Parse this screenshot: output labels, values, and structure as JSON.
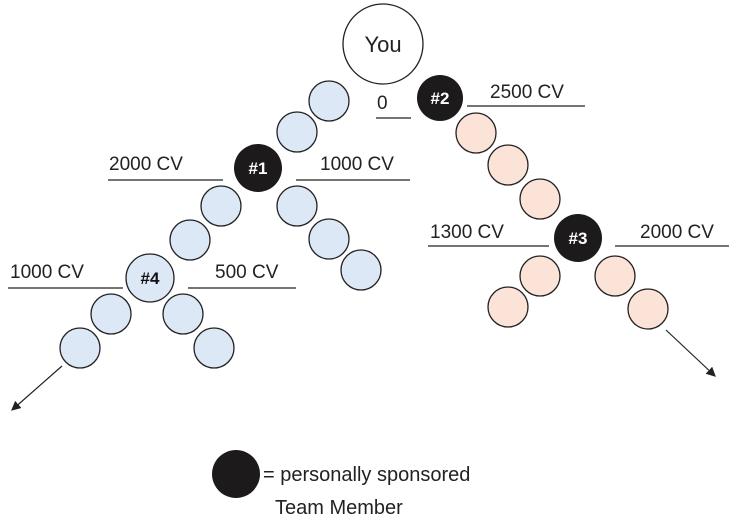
{
  "nodes": [
    {
      "label": "You"
    },
    {
      "label": "#1",
      "left": "2000 CV",
      "right": "1000 CV"
    },
    {
      "label": "#2",
      "left": "0",
      "right": "2500 CV"
    },
    {
      "label": "#3",
      "left": "1300 CV",
      "right": "2000 CV"
    },
    {
      "label": "#4",
      "left": "1000 CV",
      "right": "500 CV"
    }
  ],
  "legend": {
    "line1": "= personally sponsored",
    "line2": "Team Member"
  }
}
